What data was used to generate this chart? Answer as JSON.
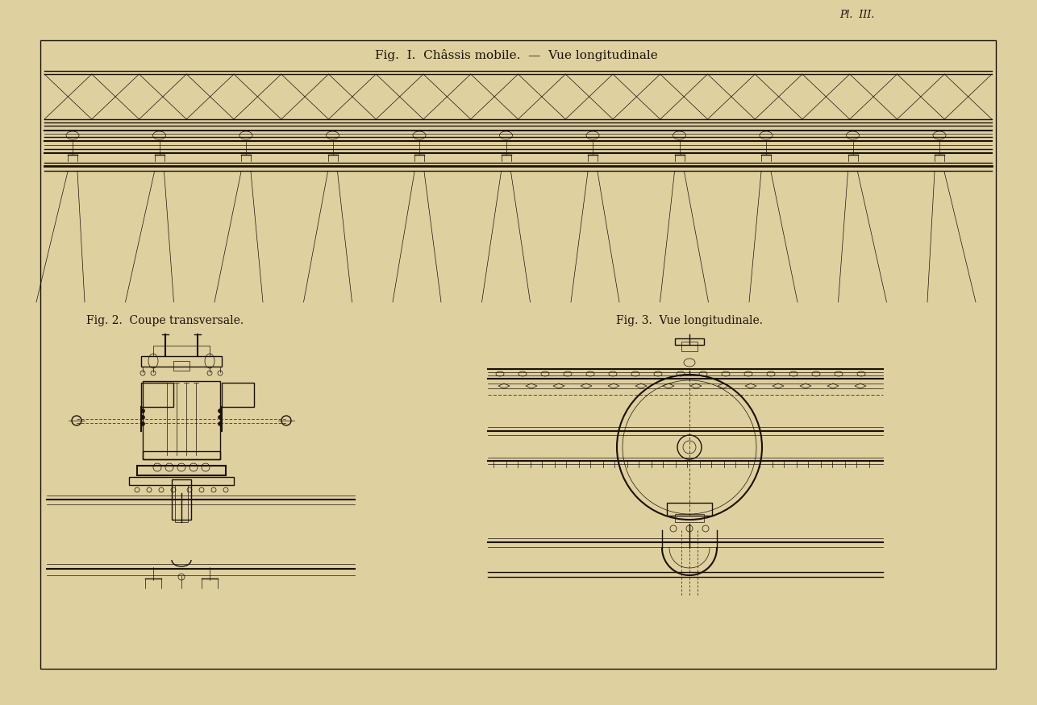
{
  "bg_color": "#dfd0a0",
  "line_color": "#1a1208",
  "fig_width": 12.86,
  "fig_height": 8.75,
  "title_fig1": "Fig.  I.  Châssis mobile.  —  Vue longitudinale",
  "title_fig2": "Fig. 2.  Coupe transversale.",
  "title_fig3": "Fig. 3.  Vue longitudinale.",
  "plate_label": "Pl.  III.",
  "lw_main": 1.0,
  "lw_thin": 0.5,
  "lw_thick": 2.0,
  "lw_med": 1.5
}
